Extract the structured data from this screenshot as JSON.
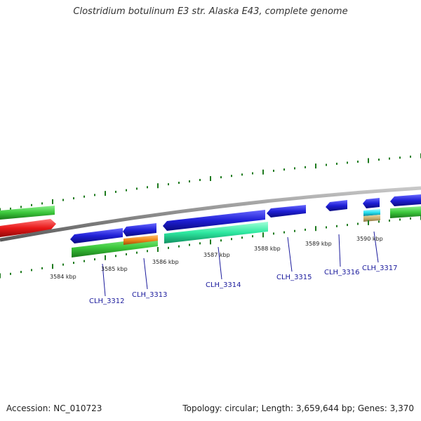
{
  "title": "Clostridium botulinum E3 str. Alaska E43, complete genome",
  "footer": {
    "accession": "Accession: NC_010723",
    "stats": "Topology: circular; Length: 3,659,644 bp; Genes: 3,370"
  },
  "scale_labels": [
    "3584 kbp",
    "3585 kbp",
    "3586 kbp",
    "3587 kbp",
    "3588 kbp",
    "3589 kbp",
    "3590 kbp"
  ],
  "gene_labels": [
    "CLH_3312",
    "CLH_3313",
    "CLH_3314",
    "CLH_3315",
    "CLH_3316",
    "CLH_3317"
  ],
  "colors": {
    "backbone": "#8c8c8c",
    "cds_forward": "#1f1fd6",
    "cds_reverse_green": "#3cc83c",
    "cds_teal": "#2ee8a0",
    "cds_orange": "#f08a1a",
    "cds_red": "#e81818",
    "cds_cyan": "#22e0f0",
    "cds_tan": "#c8b070",
    "tick": "#1e7a1e",
    "label": "#1a1a9c"
  }
}
